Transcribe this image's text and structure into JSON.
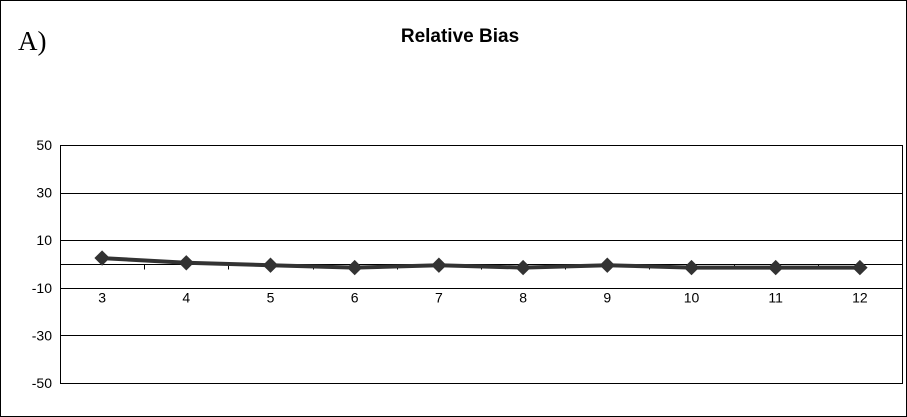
{
  "panel_label": "A)",
  "chart_data": {
    "type": "line",
    "title": "Relative Bias",
    "xlabel": "",
    "ylabel": "",
    "categories": [
      "3",
      "4",
      "5",
      "6",
      "7",
      "8",
      "9",
      "10",
      "11",
      "12"
    ],
    "series": [
      {
        "values": [
          2.5,
          0.5,
          -0.5,
          -1.5,
          -0.5,
          -1.5,
          -0.5,
          -1.5,
          -1.5,
          -1.5
        ],
        "color": "#333333",
        "marker": "diamond"
      }
    ],
    "ylim": [
      -50,
      50
    ],
    "yticks": [
      -50,
      -30,
      -10,
      10,
      30,
      50
    ],
    "grid": "horizontal",
    "legend": "none"
  }
}
